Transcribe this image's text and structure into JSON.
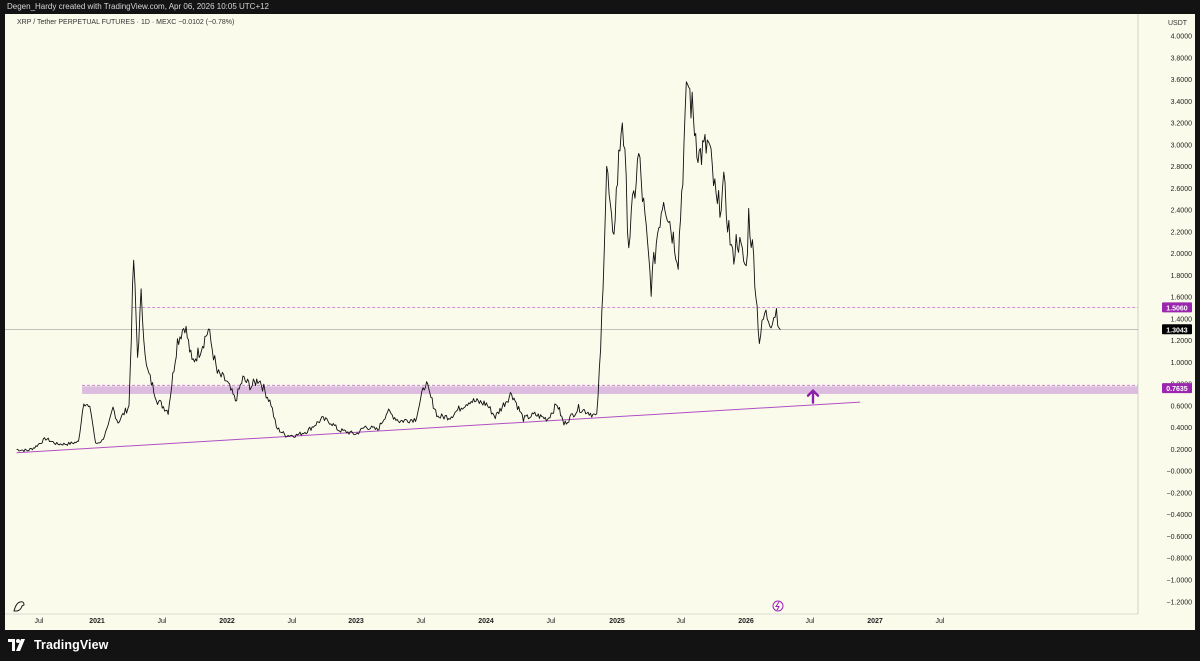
{
  "header": {
    "credit": "Degen_Hardy created with TradingView.com, Apr 06, 2026 10:05 UTC+12",
    "symbol_line": "XRP / Tether PERPETUAL FUTURES · 1D · MEXC  −0.0102 (−0.78%)"
  },
  "footer": {
    "brand": "TradingView"
  },
  "colors": {
    "background": "#fafbeb",
    "candles": "#111111",
    "support_zone": "#d7b2dd",
    "trendline": "#b04fc4",
    "arrow": "#8a1fa8",
    "resistance_dash": "#c56ccf",
    "price_badge": "#000000",
    "level_badge": "#9b27af"
  },
  "chart_data": {
    "type": "line",
    "ylabel": "USDT",
    "ylim": [
      -1.2,
      4.0
    ],
    "y_ticks": [
      "4.0000",
      "3.8000",
      "3.6000",
      "3.4000",
      "3.2000",
      "3.0000",
      "2.8000",
      "2.6000",
      "2.4000",
      "2.2000",
      "2.0000",
      "1.8000",
      "1.6000",
      "1.4000",
      "1.2000",
      "1.0000",
      "0.8000",
      "0.6000",
      "0.4000",
      "0.2000",
      "−0.0000",
      "−0.2000",
      "−0.4000",
      "−0.6000",
      "−0.8000",
      "−1.0000",
      "−1.2000"
    ],
    "x_ticks": [
      "Jul",
      "2021",
      "Jul",
      "2022",
      "Jul",
      "2023",
      "Jul",
      "2024",
      "Jul",
      "2025",
      "Jul",
      "2026",
      "Jul",
      "2027",
      "Jul"
    ],
    "series": [
      {
        "values": [
          [
            "2020-05-20",
            0.2
          ],
          [
            "2020-06-20",
            0.19
          ],
          [
            "2020-07-10",
            0.22
          ],
          [
            "2020-08-10",
            0.3
          ],
          [
            "2020-09-10",
            0.25
          ],
          [
            "2020-10-10",
            0.25
          ],
          [
            "2020-11-10",
            0.27
          ],
          [
            "2020-11-25",
            0.65
          ],
          [
            "2020-12-15",
            0.55
          ],
          [
            "2020-12-28",
            0.25
          ],
          [
            "2021-01-15",
            0.28
          ],
          [
            "2021-02-01",
            0.4
          ],
          [
            "2021-02-15",
            0.58
          ],
          [
            "2021-03-01",
            0.45
          ],
          [
            "2021-04-01",
            0.6
          ],
          [
            "2021-04-14",
            1.95
          ],
          [
            "2021-04-25",
            1.05
          ],
          [
            "2021-05-05",
            1.6
          ],
          [
            "2021-05-20",
            0.95
          ],
          [
            "2021-06-20",
            0.65
          ],
          [
            "2021-07-20",
            0.55
          ],
          [
            "2021-08-15",
            1.2
          ],
          [
            "2021-09-05",
            1.35
          ],
          [
            "2021-09-25",
            1.0
          ],
          [
            "2021-10-15",
            1.1
          ],
          [
            "2021-11-10",
            1.3
          ],
          [
            "2021-12-05",
            0.9
          ],
          [
            "2021-12-30",
            0.83
          ],
          [
            "2022-01-25",
            0.65
          ],
          [
            "2022-02-15",
            0.85
          ],
          [
            "2022-03-10",
            0.78
          ],
          [
            "2022-04-01",
            0.85
          ],
          [
            "2022-05-05",
            0.62
          ],
          [
            "2022-05-20",
            0.4
          ],
          [
            "2022-06-15",
            0.33
          ],
          [
            "2022-07-15",
            0.33
          ],
          [
            "2022-08-15",
            0.37
          ],
          [
            "2022-09-25",
            0.48
          ],
          [
            "2022-10-20",
            0.45
          ],
          [
            "2022-11-10",
            0.38
          ],
          [
            "2022-12-30",
            0.34
          ],
          [
            "2023-01-25",
            0.41
          ],
          [
            "2023-03-01",
            0.38
          ],
          [
            "2023-03-28",
            0.55
          ],
          [
            "2023-05-01",
            0.46
          ],
          [
            "2023-06-15",
            0.48
          ],
          [
            "2023-07-13",
            0.82
          ],
          [
            "2023-07-25",
            0.7
          ],
          [
            "2023-08-17",
            0.5
          ],
          [
            "2023-09-20",
            0.5
          ],
          [
            "2023-10-25",
            0.6
          ],
          [
            "2023-11-15",
            0.65
          ],
          [
            "2023-12-31",
            0.62
          ],
          [
            "2024-01-25",
            0.5
          ],
          [
            "2024-03-11",
            0.72
          ],
          [
            "2024-04-13",
            0.48
          ],
          [
            "2024-05-15",
            0.52
          ],
          [
            "2024-06-20",
            0.48
          ],
          [
            "2024-07-17",
            0.62
          ],
          [
            "2024-08-05",
            0.43
          ],
          [
            "2024-09-15",
            0.58
          ],
          [
            "2024-10-15",
            0.54
          ],
          [
            "2024-11-05",
            0.5
          ],
          [
            "2024-11-16",
            1.1
          ],
          [
            "2024-12-03",
            2.8
          ],
          [
            "2024-12-20",
            2.1
          ],
          [
            "2025-01-16",
            3.3
          ],
          [
            "2025-02-03",
            2.1
          ],
          [
            "2025-03-03",
            2.9
          ],
          [
            "2025-04-07",
            1.7
          ],
          [
            "2025-04-25",
            2.2
          ],
          [
            "2025-05-12",
            2.55
          ],
          [
            "2025-06-22",
            1.95
          ],
          [
            "2025-07-18",
            3.6
          ],
          [
            "2025-08-20",
            2.9
          ],
          [
            "2025-09-15",
            3.0
          ],
          [
            "2025-10-10",
            2.4
          ],
          [
            "2025-10-28",
            2.6
          ],
          [
            "2025-11-22",
            1.95
          ],
          [
            "2025-12-05",
            2.15
          ],
          [
            "2025-12-30",
            1.85
          ],
          [
            "2026-01-06",
            2.35
          ],
          [
            "2026-01-20",
            1.95
          ],
          [
            "2026-02-05",
            1.2
          ],
          [
            "2026-02-20",
            1.45
          ],
          [
            "2026-03-10",
            1.38
          ],
          [
            "2026-03-25",
            1.48
          ],
          [
            "2026-04-05",
            1.3
          ]
        ]
      }
    ],
    "annotations": {
      "current_price": "1.3043",
      "resistance_level": "1.5060",
      "support_level": "0.7635",
      "support_zone": [
        0.71,
        0.78
      ],
      "trendline": [
        [
          "2020-05-20",
          0.17
        ],
        [
          "2026-11-15",
          0.635
        ]
      ]
    }
  }
}
